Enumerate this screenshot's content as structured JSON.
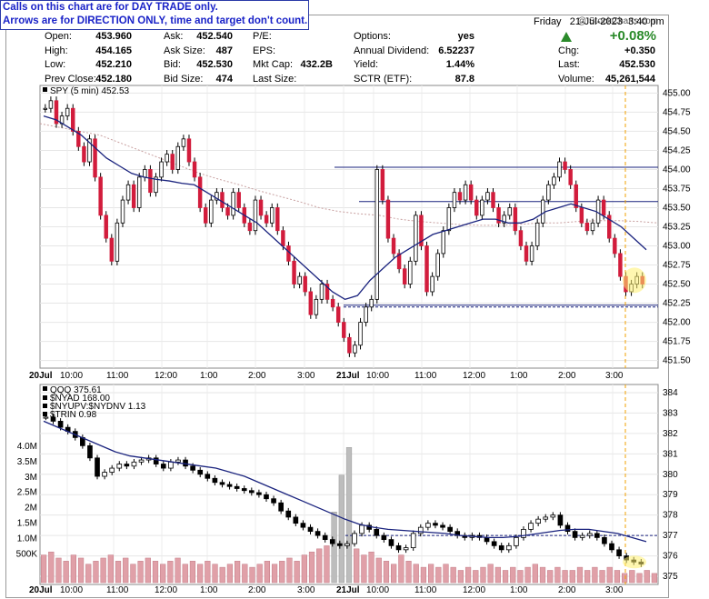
{
  "note": {
    "line1": "Calls on this chart are for DAY TRADE only.",
    "line2": "Arrows are for DIRECTION ONLY, time and target don't count."
  },
  "header": {
    "watermark": "@ StockCharts.com",
    "day": "Friday",
    "date": "21-Jul-2023",
    "time": "3:40 pm",
    "change_pct": "+0.08%",
    "up_color": "#2a8a2a"
  },
  "quote": {
    "col1": [
      {
        "label": "Open:",
        "value": "453.960"
      },
      {
        "label": "High:",
        "value": "454.165"
      },
      {
        "label": "Low:",
        "value": "452.210"
      },
      {
        "label": "Prev Close:",
        "value": "452.180"
      }
    ],
    "col2": [
      {
        "label": "Ask:",
        "value": "452.540"
      },
      {
        "label": "Ask Size:",
        "value": "487"
      },
      {
        "label": "Bid:",
        "value": "452.530"
      },
      {
        "label": "Bid Size:",
        "value": "474"
      }
    ],
    "col3": [
      {
        "label": "P/E:",
        "value": ""
      },
      {
        "label": "EPS:",
        "value": ""
      },
      {
        "label": "Mkt Cap:",
        "value": "432.2B"
      },
      {
        "label": "Last Size:",
        "value": ""
      }
    ],
    "col4": [
      {
        "label": "Options:",
        "value": "yes"
      },
      {
        "label": "Annual Dividend:",
        "value": "6.52237"
      },
      {
        "label": "Yield:",
        "value": "1.44%"
      },
      {
        "label": "SCTR (ETF):",
        "value": "87.8"
      }
    ],
    "col5": [
      {
        "label": "Chg:",
        "value": "+0.350"
      },
      {
        "label": "Last:",
        "value": "452.530"
      },
      {
        "label": "Volume:",
        "value": "45,261,544"
      }
    ]
  },
  "chart_data": [
    {
      "type": "line",
      "title": "SPY (5 min) 452.53",
      "ylim": [
        451.4,
        455.1
      ],
      "yticks": [
        455.0,
        454.75,
        454.5,
        454.25,
        454.0,
        453.75,
        453.5,
        453.25,
        453.0,
        452.75,
        452.5,
        452.25,
        452.0,
        451.75,
        451.5
      ],
      "ytick_labels": [
        "455.00",
        "454.75",
        "454.50",
        "454.25",
        "454.00",
        "453.75",
        "453.50",
        "453.25",
        "453.00",
        "452.75",
        "452.50",
        "452.25",
        "452.00",
        "451.75",
        "451.50"
      ],
      "xtick_labels": [
        "20Jul",
        "10:00",
        "11:00",
        "12:00",
        "1:00",
        "2:00",
        "3:00",
        "21Jul",
        "10:00",
        "11:00",
        "12:00",
        "1:00",
        "2:00",
        "3:00"
      ],
      "series": [
        {
          "name": "SPY",
          "color": "#000000",
          "values": [
            454.8,
            454.9,
            454.6,
            454.7,
            454.8,
            454.5,
            454.3,
            454.1,
            454.4,
            453.9,
            453.4,
            453.1,
            452.8,
            453.3,
            453.6,
            453.8,
            453.5,
            453.9,
            454.0,
            453.7,
            453.9,
            454.1,
            454.2,
            454.0,
            454.3,
            454.4,
            454.1,
            453.9,
            453.5,
            453.3,
            453.6,
            453.7,
            453.5,
            453.4,
            453.7,
            453.5,
            453.3,
            453.2,
            453.6,
            453.4,
            453.3,
            453.5,
            453.2,
            453.0,
            452.8,
            452.5,
            452.6,
            452.4,
            452.1,
            452.3,
            452.5,
            452.3,
            452.2,
            452.0,
            451.8,
            451.6,
            451.7,
            452.0,
            452.2,
            452.3,
            454.0,
            453.6,
            453.1,
            452.9,
            452.7,
            452.5,
            452.8,
            453.4,
            453.0,
            452.4,
            452.6,
            452.9,
            453.2,
            453.5,
            453.7,
            453.6,
            453.8,
            453.6,
            453.4,
            453.6,
            453.7,
            453.5,
            453.3,
            453.4,
            453.5,
            453.2,
            453.0,
            452.8,
            453.0,
            453.3,
            453.6,
            453.8,
            453.9,
            454.1,
            454.0,
            453.8,
            453.5,
            453.3,
            453.2,
            453.3,
            453.6,
            453.4,
            453.1,
            452.9,
            452.6,
            452.4,
            452.5,
            452.6,
            452.5
          ]
        },
        {
          "name": "MA",
          "color": "#1a237e",
          "values": [
            454.7,
            454.65,
            454.55,
            454.45,
            454.3,
            454.15,
            454.05,
            453.95,
            453.9,
            453.87,
            453.85,
            453.82,
            453.8,
            453.7,
            453.6,
            453.5,
            453.4,
            453.3,
            453.15,
            453.0,
            452.85,
            452.7,
            452.55,
            452.4,
            452.3,
            452.35,
            452.55,
            452.7,
            452.85,
            452.95,
            453.05,
            453.15,
            453.2,
            453.25,
            453.3,
            453.35,
            453.35,
            453.3,
            453.3,
            453.35,
            453.45,
            453.5,
            453.55,
            453.5,
            453.45,
            453.35,
            453.25,
            453.1,
            452.95
          ]
        },
        {
          "name": "MA2",
          "color": "#c8a0a0",
          "values": [
            454.6,
            454.55,
            454.5,
            454.45,
            454.35,
            454.25,
            454.15,
            454.05,
            453.95,
            453.87,
            453.8,
            453.72,
            453.65,
            453.58,
            453.5,
            453.45,
            453.42,
            453.4,
            453.35,
            453.32,
            453.3,
            453.28,
            453.27,
            453.27,
            453.28,
            453.3,
            453.3,
            453.32,
            453.33,
            453.33,
            453.32,
            453.3
          ]
        }
      ],
      "hlines": [
        {
          "value": 454.03,
          "color": "#1a237e"
        },
        {
          "value": 453.58,
          "color": "#1a237e"
        },
        {
          "value": 452.2,
          "color": "#1a237e"
        }
      ]
    },
    {
      "type": "line",
      "title": "QQQ 375.61",
      "legend": [
        "$NYAD 168.00",
        "$NYUPV:$NYDNV 1.13",
        "$TRIN 0.98"
      ],
      "ylim": [
        374.6,
        384.4
      ],
      "yticks": [
        384,
        383,
        382,
        381,
        380,
        379,
        378,
        377,
        376,
        375
      ],
      "ytick_labels": [
        "384",
        "383",
        "382",
        "381",
        "380",
        "379",
        "378",
        "377",
        "376",
        "375"
      ],
      "left_tick_labels": [
        "4.0M",
        "3.5M",
        "3M",
        "2.5M",
        "2M",
        "1.5M",
        "1.0M",
        "500K"
      ],
      "xtick_labels": [
        "20Jul",
        "10:00",
        "11:00",
        "12:00",
        "1:00",
        "2:00",
        "3:00",
        "21Jul",
        "10:00",
        "11:00",
        "12:00",
        "1:00",
        "2:00",
        "3:00"
      ],
      "series": [
        {
          "name": "QQQ",
          "color": "#000000",
          "values": [
            382.8,
            382.6,
            382.3,
            382.1,
            381.8,
            381.4,
            380.8,
            379.9,
            380.1,
            380.3,
            380.5,
            380.4,
            380.6,
            380.7,
            380.8,
            380.5,
            380.3,
            380.6,
            380.7,
            380.4,
            380.2,
            380.0,
            379.8,
            379.6,
            379.5,
            379.4,
            379.3,
            379.2,
            379.1,
            379.0,
            378.8,
            378.6,
            378.2,
            377.9,
            377.6,
            377.4,
            377.2,
            377.0,
            376.8,
            376.6,
            376.5,
            376.6,
            377.1,
            377.5,
            377.3,
            377.0,
            376.8,
            376.5,
            376.3,
            376.4,
            377.1,
            377.4,
            377.6,
            377.5,
            377.4,
            377.2,
            377.0,
            376.9,
            377.0,
            376.9,
            376.7,
            376.5,
            376.3,
            376.5,
            376.9,
            377.3,
            377.6,
            377.8,
            377.9,
            378.0,
            377.5,
            377.2,
            376.9,
            377.0,
            377.1,
            376.9,
            376.6,
            376.3,
            376.0,
            375.8,
            375.7,
            375.6
          ]
        },
        {
          "name": "MA",
          "color": "#1a237e",
          "values": [
            382.6,
            382.3,
            382.0,
            381.7,
            381.4,
            381.1,
            380.9,
            380.8,
            380.7,
            380.6,
            380.5,
            380.4,
            380.3,
            380.1,
            379.9,
            379.6,
            379.3,
            379.0,
            378.7,
            378.4,
            378.1,
            377.8,
            377.55,
            377.4,
            377.3,
            377.25,
            377.2,
            377.15,
            377.1,
            377.0,
            376.95,
            376.9,
            376.9,
            376.95,
            377.05,
            377.15,
            377.25,
            377.3,
            377.3,
            377.2,
            377.1,
            376.9,
            376.7
          ]
        },
        {
          "name": "Volume",
          "color": "#e0a0a8",
          "values": [
            0.9,
            1.0,
            0.8,
            0.7,
            0.9,
            0.8,
            0.6,
            0.7,
            0.8,
            0.9,
            0.7,
            0.8,
            0.6,
            0.7,
            0.8,
            0.7,
            0.6,
            0.7,
            0.8,
            0.6,
            0.7,
            0.6,
            0.7,
            0.6,
            0.5,
            0.6,
            0.7,
            0.6,
            0.5,
            0.6,
            0.7,
            0.6,
            0.7,
            0.8,
            0.7,
            0.9,
            1.0,
            1.1,
            1.2,
            2.3,
            3.5,
            4.4,
            1.1,
            0.9,
            1.0,
            0.8,
            0.7,
            0.6,
            0.9,
            0.7,
            0.6,
            0.5,
            0.6,
            0.5,
            0.6,
            0.5,
            0.4,
            0.5,
            0.4,
            0.5,
            0.6,
            0.5,
            0.4,
            0.5,
            0.4,
            0.5,
            0.6,
            0.5,
            0.4,
            0.5,
            0.4,
            0.4,
            0.5,
            0.4,
            0.5,
            0.4,
            0.5,
            0.4,
            0.3,
            0.4,
            0.3,
            0.4,
            0.3
          ]
        }
      ],
      "hlines": [
        {
          "value": 377.0,
          "color": "#1a237e"
        }
      ]
    }
  ]
}
